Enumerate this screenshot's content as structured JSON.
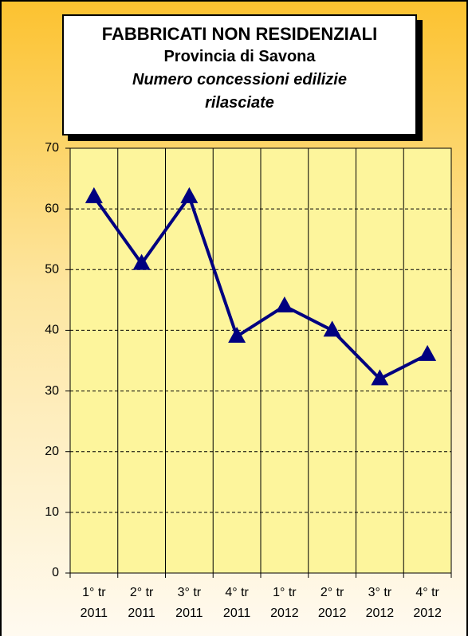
{
  "chart_data": {
    "type": "line",
    "title": "FABBRICATI NON RESIDENZIALI",
    "subtitle": "Provincia di Savona",
    "description": "Numero concessioni edilizie rilasciate",
    "categories": [
      "1° tr 2011",
      "2° tr 2011",
      "3° tr 2011",
      "4° tr 2011",
      "1° tr 2012",
      "2° tr 2012",
      "3° tr 2012",
      "4° tr 2012"
    ],
    "values": [
      62,
      51,
      62,
      39,
      44,
      40,
      32,
      36
    ],
    "color": "#000080",
    "ylim": [
      0,
      70
    ],
    "yticks": [
      0,
      10,
      20,
      30,
      40,
      50,
      60,
      70
    ],
    "grid": true
  }
}
